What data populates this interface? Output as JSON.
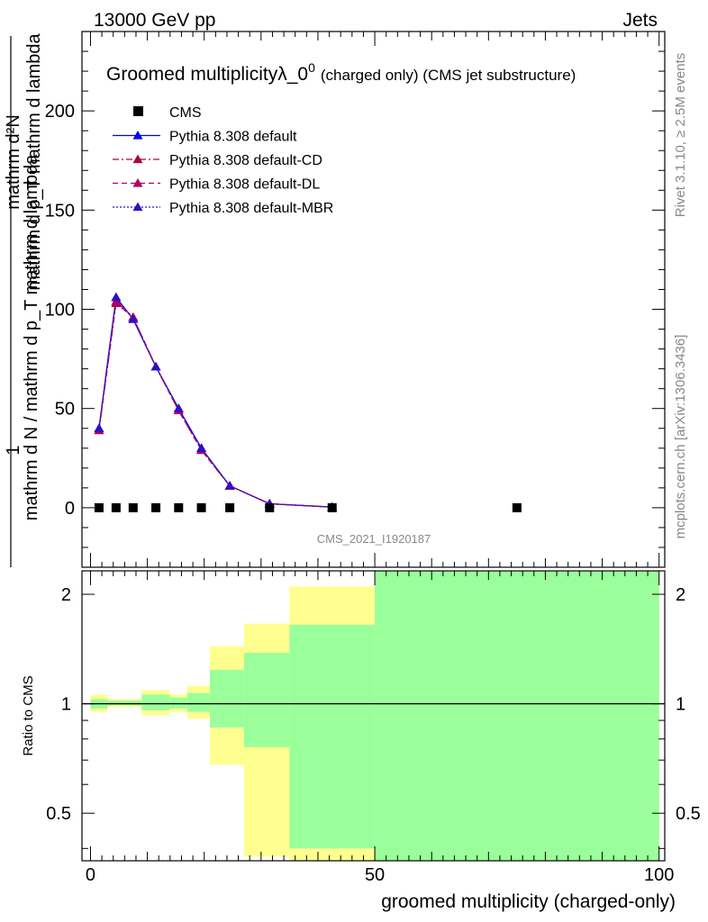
{
  "header": {
    "left_label": "13000 GeV pp",
    "right_label": "Jets"
  },
  "side_labels": {
    "rivet": "Rivet 3.1.10, ≥ 2.5M events",
    "mcplots": "mcplots.cern.ch [arXiv:1306.3436]"
  },
  "chart_data": [
    {
      "type": "line",
      "title": "Groomed multiplicityλ_0",
      "title_superscript": "0",
      "title_suffix": "(charged only) (CMS jet substructure)",
      "watermark": "CMS_2021_I1920187",
      "ylabel_top": "1",
      "ylabel_main": "mathrm d N / mathrm d p_T mathrm d lambda",
      "ylabel_num": "mathrm d²N",
      "ylabel_den": "mathrm d p_T mathrm d lambda",
      "xlim": [
        -1.5,
        101
      ],
      "ylim": [
        -30,
        240
      ],
      "yticks": [
        0,
        50,
        100,
        150,
        200
      ],
      "yticklabels": [
        "0",
        "50",
        "100",
        "150",
        "200"
      ],
      "grid": false,
      "legend_position": "top-left",
      "legend": [
        {
          "label": "CMS",
          "marker": "square",
          "color": "#000000",
          "dash": "none"
        },
        {
          "label": "Pythia 8.308 default",
          "marker": "triangle",
          "color": "#0000ff",
          "dash": "solid"
        },
        {
          "label": "Pythia 8.308 default-CD",
          "marker": "triangle",
          "color": "#b00040",
          "dash": "dashdot"
        },
        {
          "label": "Pythia 8.308 default-DL",
          "marker": "triangle",
          "color": "#b00060",
          "dash": "dashed"
        },
        {
          "label": "Pythia 8.308 default-MBR",
          "marker": "triangle",
          "color": "#3010c0",
          "dash": "dotted"
        }
      ],
      "data_points": {
        "x": [
          1.5,
          4.5,
          7.5,
          11.5,
          15.5,
          19.5,
          24.5,
          31.5,
          42.5,
          75
        ],
        "y": [
          0,
          0,
          0,
          0,
          0,
          0,
          0,
          0,
          0,
          0
        ]
      },
      "series": [
        {
          "name": "Pythia 8.308 default",
          "x": [
            1.5,
            4.5,
            7.5,
            11.5,
            15.5,
            19.5,
            24.5,
            31.5,
            42.5
          ],
          "y": [
            40,
            106,
            95,
            71,
            50,
            30,
            11,
            2,
            0.3
          ]
        },
        {
          "name": "Pythia 8.308 default-CD",
          "x": [
            1.5,
            4.5,
            7.5,
            11.5,
            15.5,
            19.5,
            24.5,
            31.5,
            42.5
          ],
          "y": [
            39,
            103,
            96,
            71,
            49,
            29,
            11,
            2,
            0.3
          ]
        },
        {
          "name": "Pythia 8.308 default-DL",
          "x": [
            1.5,
            4.5,
            7.5,
            11.5,
            15.5,
            19.5,
            24.5,
            31.5,
            42.5
          ],
          "y": [
            39,
            104,
            96,
            71,
            49,
            29,
            11,
            2,
            0.3
          ]
        },
        {
          "name": "Pythia 8.308 default-MBR",
          "x": [
            1.5,
            4.5,
            7.5,
            11.5,
            15.5,
            19.5,
            24.5,
            31.5,
            42.5
          ],
          "y": [
            40,
            106,
            95,
            71,
            50,
            30,
            11,
            2,
            0.3
          ]
        }
      ]
    },
    {
      "type": "area",
      "ylabel": "Ratio to CMS",
      "xlabel": "groomed multiplicity (charged-only)",
      "xlim": [
        -1.5,
        101
      ],
      "ylim": [
        0.37,
        2.32
      ],
      "xticks": [
        0,
        50,
        100
      ],
      "xticklabels": [
        "0",
        "50",
        "100"
      ],
      "yticks": [
        0.5,
        1,
        2
      ],
      "yticklabels": [
        "0.5",
        "1",
        "2"
      ],
      "reference_line": 1,
      "bands": [
        {
          "x0": 0,
          "x1": 3,
          "green": [
            0.97,
            1.03
          ],
          "yellow": [
            0.95,
            1.06
          ]
        },
        {
          "x0": 3,
          "x1": 6,
          "green": [
            0.99,
            1.02
          ],
          "yellow": [
            0.98,
            1.03
          ]
        },
        {
          "x0": 6,
          "x1": 9,
          "green": [
            0.99,
            1.02
          ],
          "yellow": [
            0.98,
            1.03
          ]
        },
        {
          "x0": 9,
          "x1": 14,
          "green": [
            0.96,
            1.06
          ],
          "yellow": [
            0.93,
            1.09
          ]
        },
        {
          "x0": 14,
          "x1": 17,
          "green": [
            0.97,
            1.04
          ],
          "yellow": [
            0.95,
            1.06
          ]
        },
        {
          "x0": 17,
          "x1": 21,
          "green": [
            0.95,
            1.07
          ],
          "yellow": [
            0.91,
            1.12
          ]
        },
        {
          "x0": 21,
          "x1": 27,
          "green": [
            0.86,
            1.24
          ],
          "yellow": [
            0.68,
            1.44
          ]
        },
        {
          "x0": 27,
          "x1": 35,
          "green": [
            0.76,
            1.38
          ],
          "yellow": [
            0.38,
            1.66
          ]
        },
        {
          "x0": 35,
          "x1": 50,
          "green": [
            0.4,
            1.65
          ],
          "yellow": [
            0.34,
            2.1
          ]
        },
        {
          "x0": 50,
          "x1": 100,
          "green": [
            0.34,
            2.4
          ],
          "yellow": [
            0.34,
            2.4
          ]
        }
      ],
      "band_colors": {
        "green": "#9aff9a",
        "yellow": "#ffff90"
      }
    }
  ]
}
